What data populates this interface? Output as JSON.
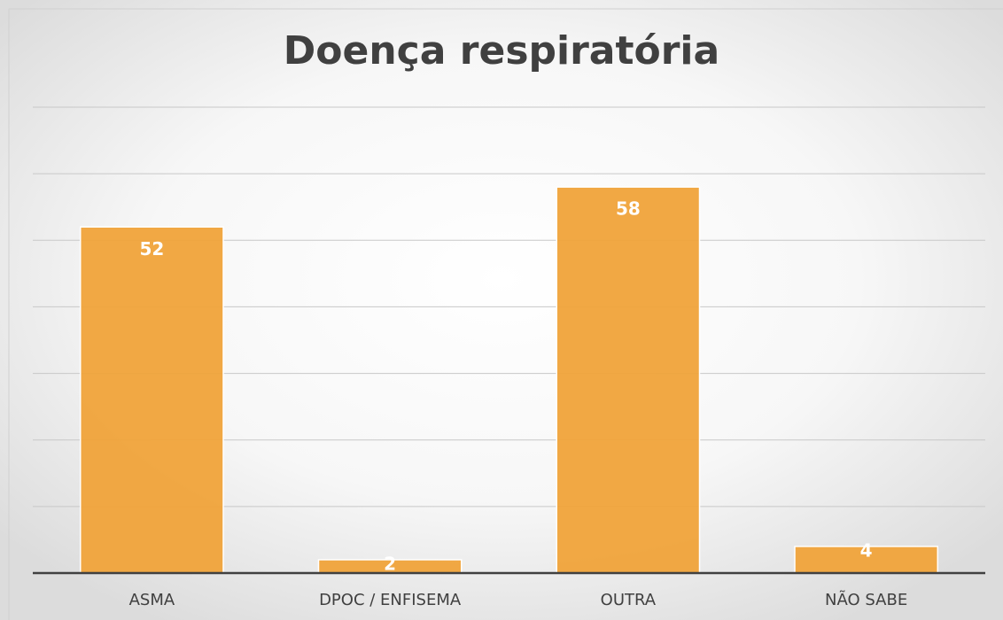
{
  "chart_data": {
    "type": "bar",
    "title": "Doença respiratória",
    "categories": [
      "ASMA",
      "DPOC / ENFISEMA",
      "OUTRA",
      "NÃO SABE"
    ],
    "values": [
      52,
      2,
      58,
      4
    ],
    "color": "#f0a33a",
    "ylim": [
      0,
      70
    ],
    "yticks": [
      0,
      10,
      20,
      30,
      40,
      50,
      60,
      70
    ],
    "grid": true
  }
}
